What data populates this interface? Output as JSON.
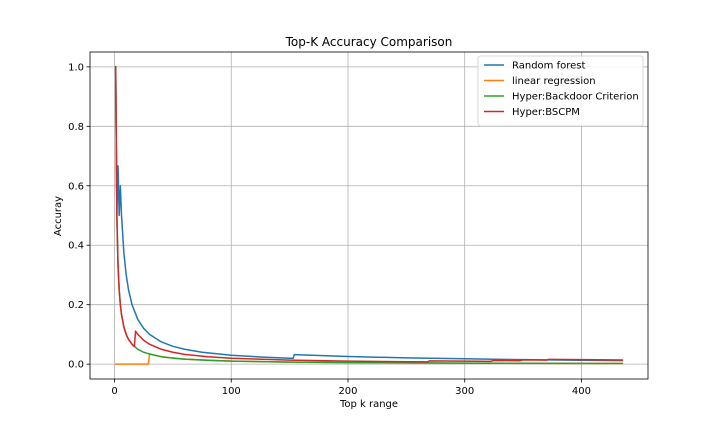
{
  "chart_data": {
    "type": "line",
    "title": "Top-K Accuracy Comparison",
    "xlabel": "Top k range",
    "ylabel": "Accuray",
    "xlim": [
      -21,
      457
    ],
    "ylim": [
      -0.05,
      1.05
    ],
    "xticks": [
      0,
      100,
      200,
      300,
      400
    ],
    "yticks": [
      0.0,
      0.2,
      0.4,
      0.6,
      0.8,
      1.0
    ],
    "xtick_labels": [
      "0",
      "100",
      "200",
      "300",
      "400"
    ],
    "ytick_labels": [
      "0.0",
      "0.2",
      "0.4",
      "0.6",
      "0.8",
      "1.0"
    ],
    "grid": true,
    "legend_position": "top-right",
    "series": [
      {
        "name": "Random forest",
        "color": "#1f77b4",
        "x": [
          1,
          2,
          3,
          4,
          5,
          6,
          8,
          10,
          12,
          15,
          20,
          25,
          30,
          40,
          50,
          60,
          75,
          100,
          125,
          150,
          153,
          154,
          200,
          250,
          300,
          350,
          400,
          435
        ],
        "y": [
          1.0,
          0.5,
          0.667,
          0.5,
          0.6,
          0.5,
          0.375,
          0.3,
          0.25,
          0.2,
          0.15,
          0.12,
          0.1,
          0.075,
          0.06,
          0.05,
          0.04,
          0.03,
          0.024,
          0.02,
          0.0196,
          0.032,
          0.0255,
          0.021,
          0.018,
          0.015,
          0.013,
          0.012
        ]
      },
      {
        "name": "linear regression",
        "color": "#ff7f0e",
        "x": [
          1,
          10,
          20,
          27,
          28,
          29,
          30,
          40,
          60,
          100,
          150,
          200,
          300,
          435
        ],
        "y": [
          0.0,
          0.0,
          0.0,
          0.0,
          0.0,
          0.0,
          0.034,
          0.025,
          0.017,
          0.01,
          0.0067,
          0.005,
          0.0034,
          0.0023
        ]
      },
      {
        "name": "Hyper:Backdoor Criterion",
        "color": "#2ca02c",
        "x": [
          1,
          2,
          3,
          4,
          5,
          6,
          8,
          10,
          12,
          15,
          20,
          25,
          30,
          40,
          50,
          60,
          80,
          100,
          150,
          200,
          300,
          435
        ],
        "y": [
          1.0,
          0.5,
          0.333,
          0.25,
          0.2,
          0.167,
          0.125,
          0.1,
          0.083,
          0.067,
          0.05,
          0.04,
          0.034,
          0.025,
          0.02,
          0.017,
          0.0125,
          0.01,
          0.0067,
          0.005,
          0.0034,
          0.0023
        ]
      },
      {
        "name": "Hyper:BSCPM",
        "color": "#d62728",
        "x": [
          1,
          2,
          3,
          4,
          5,
          6,
          8,
          10,
          12,
          15,
          16,
          17,
          18,
          20,
          25,
          30,
          40,
          50,
          60,
          80,
          100,
          150,
          200,
          268,
          270,
          300,
          322,
          325,
          347,
          350,
          370,
          372,
          400,
          435
        ],
        "y": [
          1.0,
          0.5,
          0.333,
          0.25,
          0.2,
          0.167,
          0.125,
          0.1,
          0.083,
          0.067,
          0.0625,
          0.059,
          0.111,
          0.1,
          0.08,
          0.067,
          0.05,
          0.04,
          0.033,
          0.025,
          0.02,
          0.0133,
          0.01,
          0.0075,
          0.011,
          0.01,
          0.0093,
          0.0123,
          0.0115,
          0.0143,
          0.0135,
          0.0161,
          0.015,
          0.0138
        ]
      }
    ]
  }
}
